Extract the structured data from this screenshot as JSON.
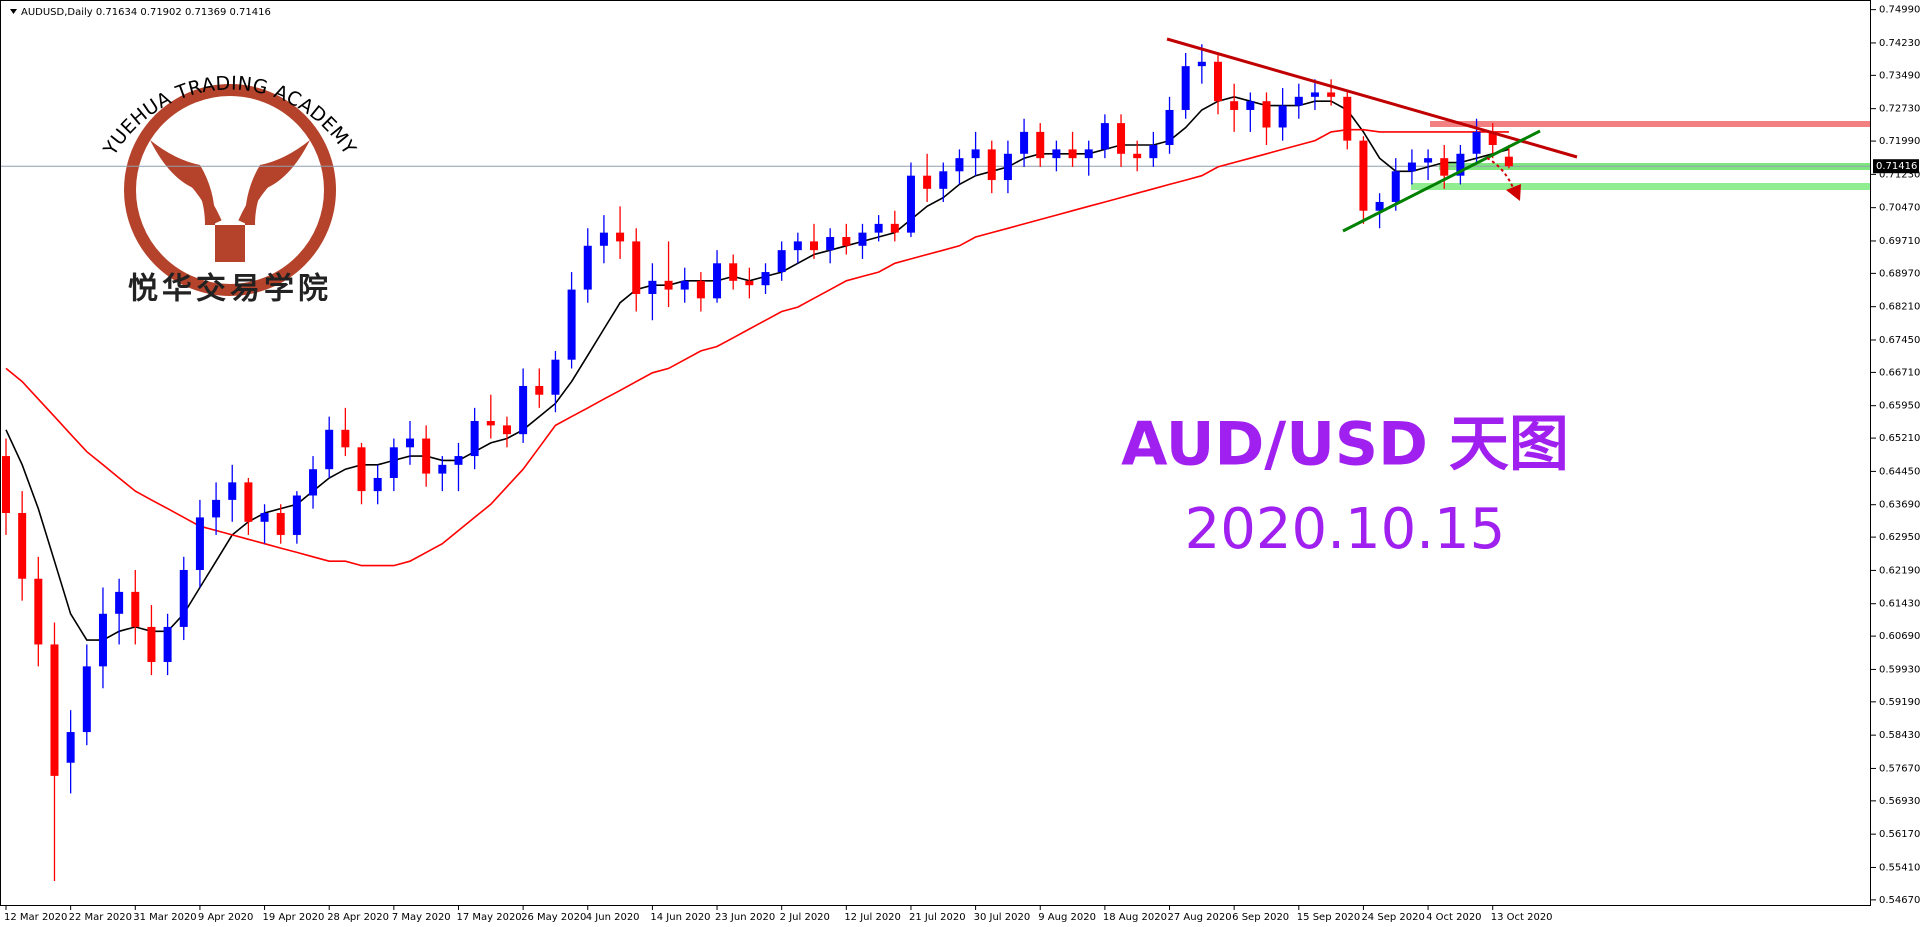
{
  "chart_data": {
    "type": "candlestick",
    "title": "AUDUSD,Daily  0.71634 0.71902 0.71369 0.71416",
    "categories": [
      "12 Mar 2020",
      null,
      null,
      null,
      "22 Mar 2020",
      null,
      null,
      null,
      "31 Mar 2020",
      null,
      null,
      null,
      "9 Apr 2020",
      null,
      null,
      null,
      "19 Apr 2020",
      null,
      null,
      null,
      "28 Apr 2020",
      null,
      null,
      null,
      "7 May 2020",
      null,
      null,
      null,
      "17 May 2020",
      null,
      null,
      null,
      "26 May 2020",
      null,
      null,
      null,
      "4 Jun 2020",
      null,
      null,
      null,
      "14 Jun 2020",
      null,
      null,
      null,
      "23 Jun 2020",
      null,
      null,
      null,
      "2 Jul 2020",
      null,
      null,
      null,
      "12 Jul 2020",
      null,
      null,
      null,
      "21 Jul 2020",
      null,
      null,
      null,
      "30 Jul 2020",
      null,
      null,
      null,
      "9 Aug 2020",
      null,
      null,
      null,
      "18 Aug 2020",
      null,
      null,
      null,
      "27 Aug 2020",
      null,
      null,
      null,
      "6 Sep 2020",
      null,
      null,
      null,
      "15 Sep 2020",
      null,
      null,
      null,
      "24 Sep 2020",
      null,
      null,
      null,
      "4 Oct 2020",
      null,
      null,
      null,
      "13 Oct 2020",
      null
    ],
    "open": [
      0.648,
      0.635,
      0.62,
      0.605,
      0.578,
      0.585,
      0.6,
      0.612,
      0.617,
      0.609,
      0.601,
      0.609,
      0.622,
      0.634,
      0.638,
      0.642,
      0.633,
      0.635,
      0.63,
      0.639,
      0.645,
      0.654,
      0.65,
      0.64,
      0.643,
      0.65,
      0.652,
      0.644,
      0.646,
      0.648,
      0.656,
      0.655,
      0.653,
      0.664,
      0.662,
      0.67,
      0.686,
      0.696,
      0.699,
      0.697,
      0.685,
      0.688,
      0.686,
      0.688,
      0.684,
      0.692,
      0.688,
      0.687,
      0.69,
      0.695,
      0.697,
      0.695,
      0.698,
      0.696,
      0.699,
      0.701,
      0.699,
      0.712,
      0.709,
      0.713,
      0.716,
      0.718,
      0.711,
      0.717,
      0.722,
      0.716,
      0.718,
      0.716,
      0.718,
      0.724,
      0.717,
      0.716,
      0.719,
      0.727,
      0.737,
      0.738,
      0.729,
      0.727,
      0.729,
      0.723,
      0.728,
      0.73,
      0.731,
      0.73,
      0.72,
      0.704,
      0.706,
      0.713,
      0.715,
      0.716,
      0.712,
      0.717,
      0.722,
      0.71634
    ],
    "high": [
      0.652,
      0.64,
      0.625,
      0.61,
      0.59,
      0.605,
      0.618,
      0.62,
      0.622,
      0.614,
      0.612,
      0.625,
      0.638,
      0.642,
      0.646,
      0.643,
      0.637,
      0.637,
      0.64,
      0.648,
      0.657,
      0.659,
      0.651,
      0.646,
      0.652,
      0.656,
      0.655,
      0.648,
      0.651,
      0.659,
      0.662,
      0.657,
      0.668,
      0.668,
      0.672,
      0.69,
      0.7,
      0.703,
      0.705,
      0.7,
      0.692,
      0.697,
      0.691,
      0.69,
      0.695,
      0.694,
      0.691,
      0.692,
      0.697,
      0.699,
      0.701,
      0.7,
      0.701,
      0.701,
      0.703,
      0.704,
      0.715,
      0.717,
      0.715,
      0.718,
      0.722,
      0.72,
      0.72,
      0.725,
      0.724,
      0.72,
      0.722,
      0.72,
      0.726,
      0.726,
      0.72,
      0.722,
      0.73,
      0.74,
      0.742,
      0.74,
      0.733,
      0.731,
      0.731,
      0.732,
      0.733,
      0.734,
      0.734,
      0.731,
      0.721,
      0.708,
      0.716,
      0.718,
      0.718,
      0.719,
      0.719,
      0.725,
      0.724,
      0.71902
    ],
    "low": [
      0.63,
      0.615,
      0.6,
      0.551,
      0.571,
      0.582,
      0.595,
      0.605,
      0.605,
      0.598,
      0.598,
      0.606,
      0.618,
      0.63,
      0.633,
      0.63,
      0.628,
      0.628,
      0.628,
      0.636,
      0.643,
      0.648,
      0.637,
      0.637,
      0.64,
      0.646,
      0.641,
      0.64,
      0.64,
      0.645,
      0.652,
      0.65,
      0.651,
      0.659,
      0.658,
      0.668,
      0.683,
      0.692,
      0.693,
      0.681,
      0.679,
      0.682,
      0.683,
      0.681,
      0.683,
      0.686,
      0.684,
      0.685,
      0.688,
      0.692,
      0.693,
      0.692,
      0.694,
      0.693,
      0.697,
      0.697,
      0.698,
      0.706,
      0.706,
      0.71,
      0.712,
      0.708,
      0.708,
      0.714,
      0.714,
      0.713,
      0.714,
      0.712,
      0.716,
      0.714,
      0.713,
      0.714,
      0.717,
      0.725,
      0.733,
      0.726,
      0.722,
      0.722,
      0.719,
      0.72,
      0.725,
      0.727,
      0.728,
      0.718,
      0.701,
      0.7,
      0.704,
      0.71,
      0.711,
      0.709,
      0.71,
      0.715,
      0.716,
      0.71369
    ],
    "close": [
      0.635,
      0.62,
      0.605,
      0.575,
      0.585,
      0.6,
      0.612,
      0.617,
      0.609,
      0.601,
      0.609,
      0.622,
      0.634,
      0.638,
      0.642,
      0.633,
      0.635,
      0.63,
      0.639,
      0.645,
      0.654,
      0.65,
      0.64,
      0.643,
      0.65,
      0.652,
      0.644,
      0.646,
      0.648,
      0.656,
      0.655,
      0.653,
      0.664,
      0.662,
      0.67,
      0.686,
      0.696,
      0.699,
      0.697,
      0.685,
      0.688,
      0.686,
      0.688,
      0.684,
      0.692,
      0.688,
      0.687,
      0.69,
      0.695,
      0.697,
      0.695,
      0.698,
      0.696,
      0.699,
      0.701,
      0.699,
      0.712,
      0.709,
      0.713,
      0.716,
      0.718,
      0.711,
      0.717,
      0.722,
      0.716,
      0.718,
      0.716,
      0.718,
      0.724,
      0.717,
      0.716,
      0.719,
      0.727,
      0.737,
      0.738,
      0.729,
      0.727,
      0.729,
      0.723,
      0.728,
      0.73,
      0.731,
      0.73,
      0.72,
      0.704,
      0.706,
      0.713,
      0.715,
      0.716,
      0.712,
      0.717,
      0.722,
      0.719,
      0.71416
    ],
    "up_color": "#0000ff",
    "down_color": "#ff0000",
    "lines": [
      {
        "color": "#000000",
        "values": [
          0.654,
          0.646,
          0.636,
          0.624,
          0.612,
          0.606,
          0.606,
          0.608,
          0.609,
          0.608,
          0.608,
          0.612,
          0.618,
          0.624,
          0.63,
          0.633,
          0.635,
          0.636,
          0.637,
          0.64,
          0.643,
          0.645,
          0.646,
          0.646,
          0.647,
          0.648,
          0.648,
          0.647,
          0.647,
          0.649,
          0.651,
          0.652,
          0.654,
          0.657,
          0.66,
          0.665,
          0.671,
          0.677,
          0.683,
          0.686,
          0.687,
          0.687,
          0.688,
          0.688,
          0.688,
          0.689,
          0.688,
          0.689,
          0.69,
          0.692,
          0.694,
          0.695,
          0.696,
          0.697,
          0.698,
          0.699,
          0.702,
          0.705,
          0.707,
          0.71,
          0.712,
          0.713,
          0.714,
          0.716,
          0.717,
          0.717,
          0.717,
          0.717,
          0.718,
          0.719,
          0.719,
          0.719,
          0.72,
          0.723,
          0.727,
          0.729,
          0.73,
          0.729,
          0.728,
          0.728,
          0.728,
          0.729,
          0.729,
          0.727,
          0.722,
          0.716,
          0.713,
          0.713,
          0.714,
          0.715,
          0.715,
          0.716,
          0.717,
          0.718
        ]
      },
      {
        "color": "#ff0000",
        "values": [
          0.668,
          0.665,
          0.661,
          0.657,
          0.653,
          0.649,
          0.646,
          0.643,
          0.64,
          0.638,
          0.636,
          0.634,
          0.632,
          0.631,
          0.63,
          0.629,
          0.628,
          0.627,
          0.626,
          0.625,
          0.624,
          0.624,
          0.623,
          0.623,
          0.623,
          0.624,
          0.626,
          0.628,
          0.631,
          0.634,
          0.637,
          0.641,
          0.645,
          0.65,
          0.655,
          0.657,
          0.659,
          0.661,
          0.663,
          0.665,
          0.667,
          0.668,
          0.67,
          0.672,
          0.673,
          0.675,
          0.677,
          0.679,
          0.681,
          0.682,
          0.684,
          0.686,
          0.688,
          0.689,
          0.69,
          0.692,
          0.693,
          0.694,
          0.695,
          0.696,
          0.698,
          0.699,
          0.7,
          0.701,
          0.702,
          0.703,
          0.704,
          0.705,
          0.706,
          0.707,
          0.708,
          0.709,
          0.71,
          0.711,
          0.712,
          0.714,
          0.715,
          0.716,
          0.717,
          0.718,
          0.719,
          0.72,
          0.722,
          0.7225,
          0.7225,
          0.722,
          0.722,
          0.722,
          0.722,
          0.722,
          0.722,
          0.722,
          0.722,
          0.722
        ]
      }
    ],
    "current_price": 0.71416,
    "ylim": [
      0.5453,
      0.7521
    ],
    "yticks": [
      {
        "value": 0.7499,
        "label": "0.74990"
      },
      {
        "value": 0.7423,
        "label": "0.74230"
      },
      {
        "value": 0.7349,
        "label": "0.73490"
      },
      {
        "value": 0.7273,
        "label": "0.72730"
      },
      {
        "value": 0.7199,
        "label": "0.71990"
      },
      {
        "value": 0.7123,
        "label": "0.71230"
      },
      {
        "value": 0.7047,
        "label": "0.70470"
      },
      {
        "value": 0.6971,
        "label": "0.69710"
      },
      {
        "value": 0.6897,
        "label": "0.68970"
      },
      {
        "value": 0.6821,
        "label": "0.68210"
      },
      {
        "value": 0.6745,
        "label": "0.67450"
      },
      {
        "value": 0.6671,
        "label": "0.66710"
      },
      {
        "value": 0.6595,
        "label": "0.65950"
      },
      {
        "value": 0.6521,
        "label": "0.65210"
      },
      {
        "value": 0.6445,
        "label": "0.64450"
      },
      {
        "value": 0.6369,
        "label": "0.63690"
      },
      {
        "value": 0.6295,
        "label": "0.62950"
      },
      {
        "value": 0.6219,
        "label": "0.62190"
      },
      {
        "value": 0.6143,
        "label": "0.61430"
      },
      {
        "value": 0.6069,
        "label": "0.60690"
      },
      {
        "value": 0.5993,
        "label": "0.59930"
      },
      {
        "value": 0.5919,
        "label": "0.59190"
      },
      {
        "value": 0.5843,
        "label": "0.58430"
      },
      {
        "value": 0.5767,
        "label": "0.57670"
      },
      {
        "value": 0.5693,
        "label": "0.56930"
      },
      {
        "value": 0.5617,
        "label": "0.56170"
      },
      {
        "value": 0.5541,
        "label": "0.55410"
      },
      {
        "value": 0.5467,
        "label": "0.54670"
      }
    ],
    "watermark": {
      "title": "AUD/USD 天图",
      "date": "2020.10.15"
    },
    "logo": {
      "name_en": "YUEHUA TRADING ACADEMY",
      "name_cn": "悦华交易学院"
    }
  }
}
